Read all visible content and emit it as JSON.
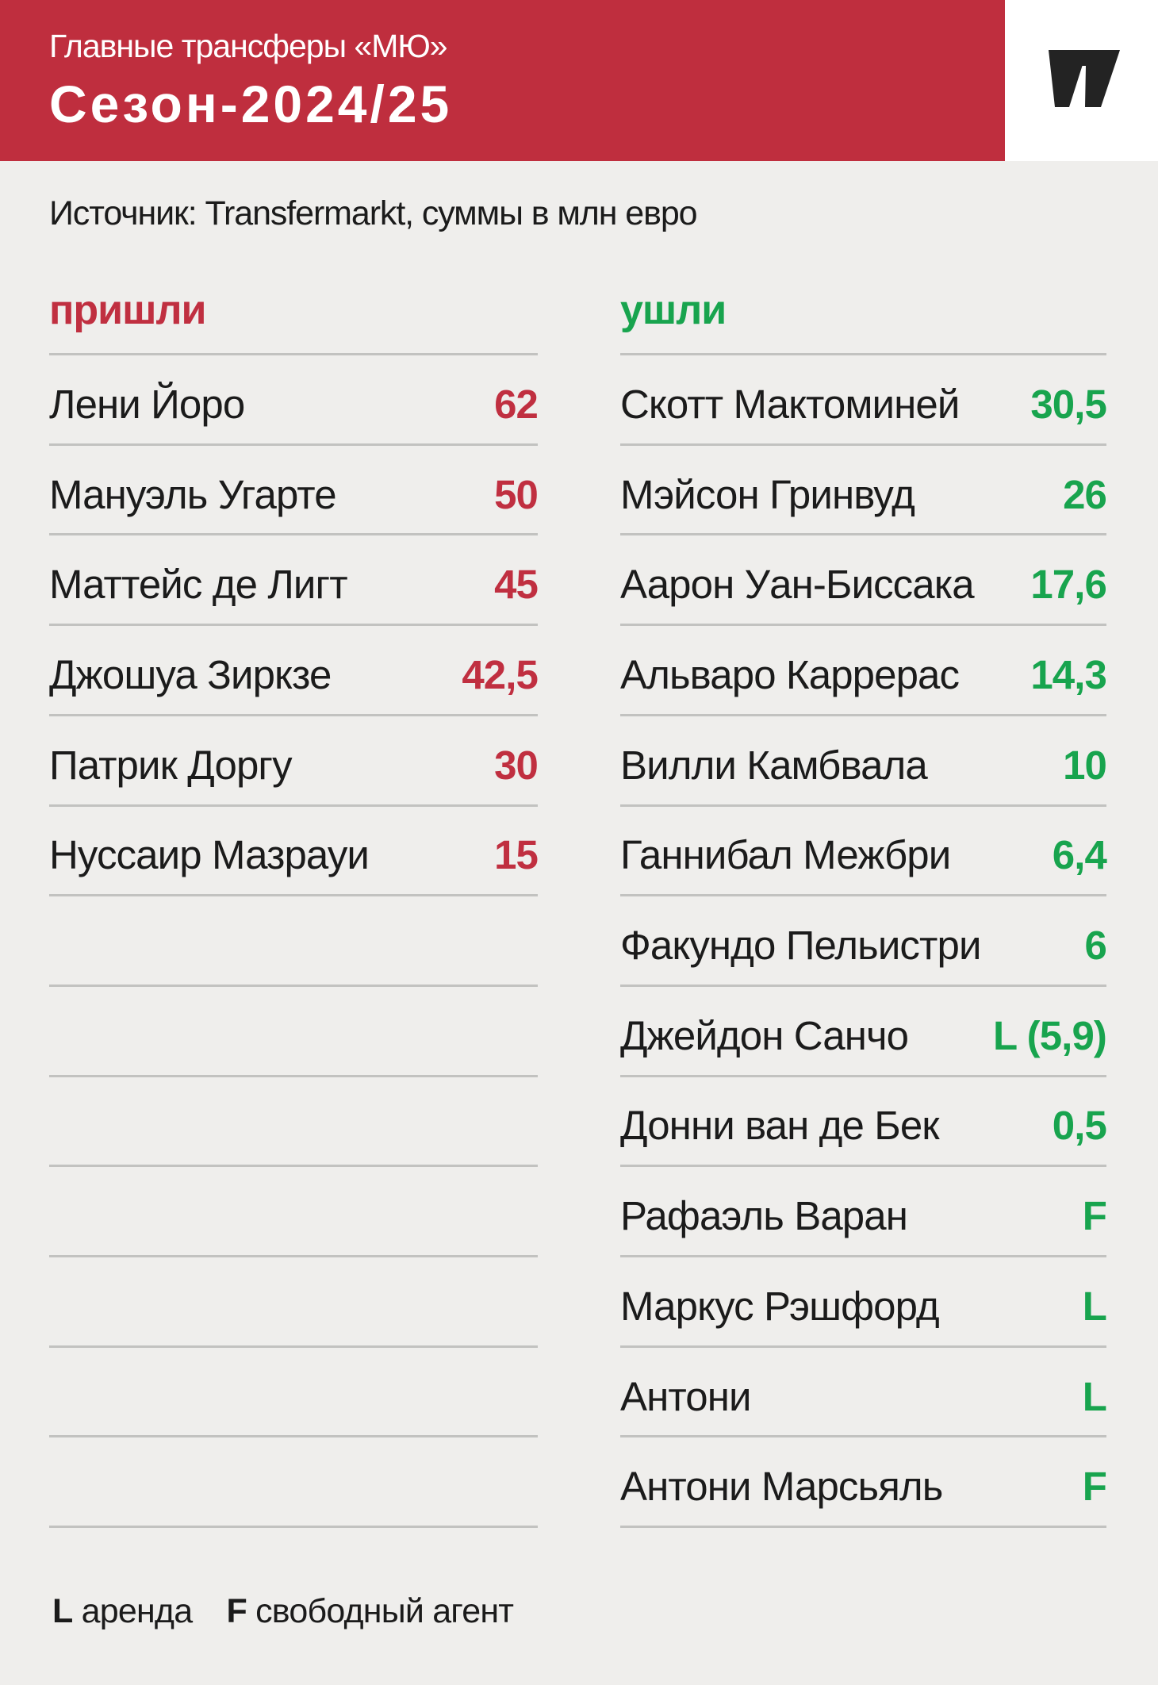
{
  "header": {
    "subtitle": "Главные трансферы «МЮ»",
    "title": "Сезон-2024/25"
  },
  "logo": "w-mark",
  "source_note": "Источник: Transfermarkt, суммы в млн евро",
  "colors": {
    "red": "#bf2e3e",
    "red_text": "#c02f40",
    "green": "#18a44e",
    "background": "#efeeec",
    "line": "#c2c2c0",
    "ink": "#1b1b1b",
    "logo_black": "#232323"
  },
  "columns": {
    "in": {
      "title": "пришли",
      "rows": [
        {
          "name": "Лени Йоро",
          "value": "62"
        },
        {
          "name": "Мануэль Угарте",
          "value": "50"
        },
        {
          "name": "Маттейс де Лигт",
          "value": "45"
        },
        {
          "name": "Джошуа Зиркзе",
          "value": "42,5"
        },
        {
          "name": "Патрик Доргу",
          "value": "30"
        },
        {
          "name": "Нуссаир Мазрауи",
          "value": "15"
        },
        {
          "name": "",
          "value": ""
        },
        {
          "name": "",
          "value": ""
        },
        {
          "name": "",
          "value": ""
        },
        {
          "name": "",
          "value": ""
        },
        {
          "name": "",
          "value": ""
        },
        {
          "name": "",
          "value": ""
        },
        {
          "name": "",
          "value": ""
        }
      ]
    },
    "out": {
      "title": "ушли",
      "rows": [
        {
          "name": "Скотт Мактоминей",
          "value": "30,5"
        },
        {
          "name": "Мэйсон Гринвуд",
          "value": "26"
        },
        {
          "name": "Аарон Уан-Биссака",
          "value": "17,6"
        },
        {
          "name": "Альваро Каррерас",
          "value": "14,3"
        },
        {
          "name": "Вилли Камбвала",
          "value": "10"
        },
        {
          "name": "Ганнибал Межбри",
          "value": "6,4"
        },
        {
          "name": "Факундо Пельистри",
          "value": "6"
        },
        {
          "name": "Джейдон Санчо",
          "value": "L (5,9)"
        },
        {
          "name": "Донни ван де Бек",
          "value": "0,5"
        },
        {
          "name": "Рафаэль Варан",
          "value": "F"
        },
        {
          "name": "Маркус Рэшфорд",
          "value": "L"
        },
        {
          "name": "Антони",
          "value": "L"
        },
        {
          "name": "Антони Марсьяль",
          "value": "F"
        }
      ]
    }
  },
  "legend": {
    "loan_key": "L",
    "loan_label": "аренда",
    "free_key": "F",
    "free_label": "свободный агент"
  },
  "chart_data": [
    {
      "type": "table",
      "title": "пришли",
      "columns": [
        "Игрок",
        "Сумма (млн евро)"
      ],
      "rows": [
        [
          "Лени Йоро",
          62
        ],
        [
          "Мануэль Угарте",
          50
        ],
        [
          "Маттейс де Лигт",
          45
        ],
        [
          "Джошуа Зиркзе",
          42.5
        ],
        [
          "Патрик Доргу",
          30
        ],
        [
          "Нуссаир Мазрауи",
          15
        ]
      ]
    },
    {
      "type": "table",
      "title": "ушли",
      "columns": [
        "Игрок",
        "Сумма (млн евро)"
      ],
      "rows": [
        [
          "Скотт Мактоминей",
          30.5
        ],
        [
          "Мэйсон Гринвуд",
          26
        ],
        [
          "Аарон Уан-Биссака",
          17.6
        ],
        [
          "Альваро Каррерас",
          14.3
        ],
        [
          "Вилли Камбвала",
          10
        ],
        [
          "Ганнибал Межбри",
          6.4
        ],
        [
          "Факундо Пельистри",
          6
        ],
        [
          "Джейдон Санчо",
          "L (5,9)"
        ],
        [
          "Донни ван де Бек",
          0.5
        ],
        [
          "Рафаэль Варан",
          "F"
        ],
        [
          "Маркус Рэшфорд",
          "L"
        ],
        [
          "Антони",
          "L"
        ],
        [
          "Антони Марсьяль",
          "F"
        ]
      ]
    }
  ]
}
